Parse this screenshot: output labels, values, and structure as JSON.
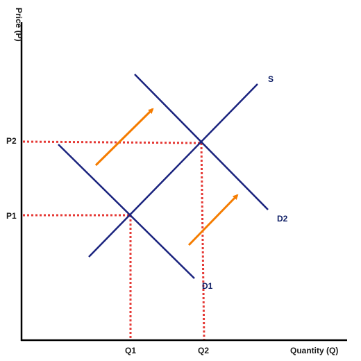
{
  "axes": {
    "y_label": "Price (P)",
    "x_label": "Quantity (Q)"
  },
  "curves": {
    "supply": "S",
    "demand_1": "D1",
    "demand_2": "D2"
  },
  "price_levels": [
    "P1",
    "P2"
  ],
  "quantity_levels": [
    "Q1",
    "Q2"
  ],
  "colors": {
    "curve": "#1a237e",
    "guide": "#e53935",
    "shift_arrow": "#f57c00",
    "axis": "#000000"
  }
}
